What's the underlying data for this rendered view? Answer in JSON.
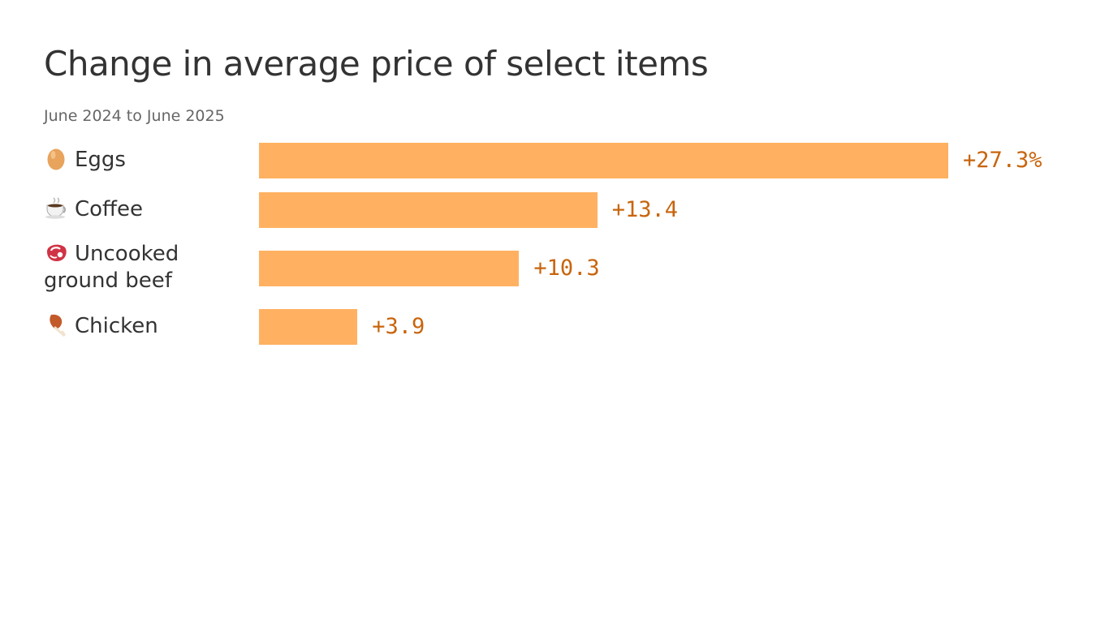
{
  "chart_data": {
    "type": "bar",
    "orientation": "horizontal",
    "title": "Change in average price of select items",
    "subtitle": "June 2024 to June 2025",
    "unit_suffix": "%",
    "categories": [
      "Eggs",
      "Coffee",
      "Uncooked ground beef",
      "Chicken"
    ],
    "category_lines": [
      [
        "Eggs"
      ],
      [
        "Coffee"
      ],
      [
        "Uncooked",
        "ground beef"
      ],
      [
        "Chicken"
      ]
    ],
    "category_icons": [
      "egg-icon",
      "coffee-icon",
      "steak-icon",
      "chicken-leg-icon"
    ],
    "values": [
      27.3,
      13.4,
      10.3,
      3.9
    ],
    "value_labels": [
      "+27.3%",
      "+13.4",
      "+10.3",
      "+3.9"
    ],
    "xlim": [
      0,
      27.3
    ],
    "grid": false,
    "legend": "none",
    "colors": {
      "bar": "#ffb161",
      "value_label": "#c8650d",
      "title": "#333333",
      "subtitle": "#666666"
    }
  }
}
